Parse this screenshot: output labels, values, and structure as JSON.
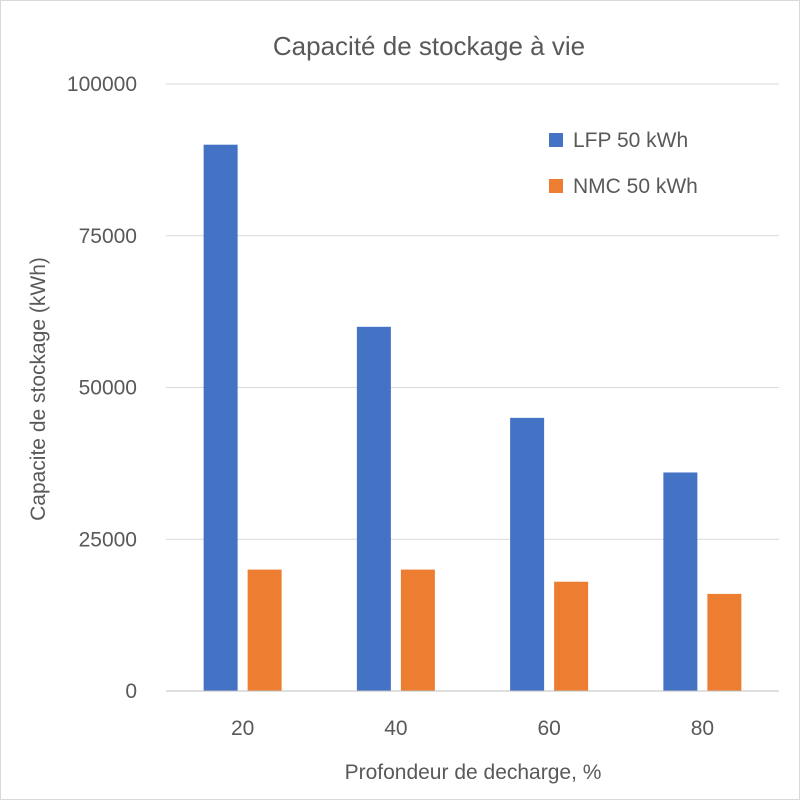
{
  "chart_data": {
    "type": "bar",
    "title": "Capacité de stockage à vie",
    "xlabel": "Profondeur de decharge, %",
    "ylabel": "Capacite de stockage (kWh)",
    "categories": [
      "20",
      "40",
      "60",
      "80"
    ],
    "series": [
      {
        "name": "LFP 50 kWh",
        "values": [
          90000,
          60000,
          45000,
          36000
        ],
        "color": "#4472c4"
      },
      {
        "name": "NMC 50 kWh",
        "values": [
          20000,
          20000,
          18000,
          16000
        ],
        "color": "#ed7d31"
      }
    ],
    "ylim": [
      0,
      100000
    ],
    "yticks": [
      "0",
      "25000",
      "50000",
      "75000",
      "100000"
    ],
    "grid": true,
    "legend_position": "top-right"
  }
}
